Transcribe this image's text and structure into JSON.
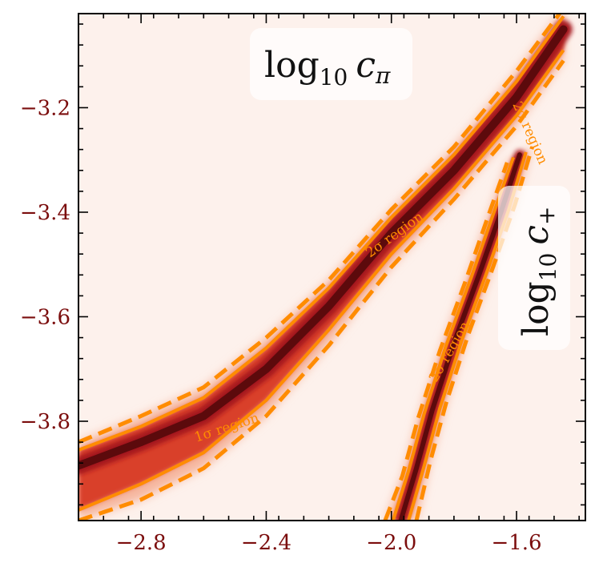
{
  "chart_data": {
    "type": "heatmap",
    "title": "",
    "xlabel": "",
    "ylabel": "",
    "xlim": [
      -3.0,
      -1.38
    ],
    "ylim": [
      -3.99,
      -3.02
    ],
    "grid": false,
    "x_ticks": [
      -2.8,
      -2.4,
      -2.0,
      -1.6
    ],
    "y_ticks": [
      -3.2,
      -3.4,
      -3.6,
      -3.8
    ],
    "x_tick_labels": [
      "−2.8",
      "−2.4",
      "−2.0",
      "−1.6"
    ],
    "y_tick_labels": [
      "−3.2",
      "−3.4",
      "−3.6",
      "−3.8"
    ],
    "colormap": [
      "#fdf1ec",
      "#f6b69e",
      "#d9402a",
      "#a4121a",
      "#5c0a0c"
    ],
    "contour_color": "#ff8c00",
    "series": [
      {
        "name": "log10 c_pi",
        "label_main": "log",
        "label_sub": "10",
        "label_var": "c",
        "label_var_sub": "π",
        "ridge": [
          [
            -3.0,
            -3.885
          ],
          [
            -2.8,
            -3.84
          ],
          [
            -2.6,
            -3.79
          ],
          [
            -2.4,
            -3.7
          ],
          [
            -2.2,
            -3.58
          ],
          [
            -2.0,
            -3.44
          ],
          [
            -1.8,
            -3.32
          ],
          [
            -1.6,
            -3.18
          ],
          [
            -1.45,
            -3.05
          ]
        ],
        "contours": [
          {
            "label": "1σ region",
            "style": "solid",
            "upper": [
              [
                -3.0,
                -3.855
              ],
              [
                -2.8,
                -3.81
              ],
              [
                -2.6,
                -3.755
              ],
              [
                -2.4,
                -3.66
              ],
              [
                -2.2,
                -3.545
              ],
              [
                -2.0,
                -3.41
              ],
              [
                -1.8,
                -3.29
              ],
              [
                -1.6,
                -3.15
              ],
              [
                -1.45,
                -3.025
              ]
            ],
            "lower": [
              [
                -3.0,
                -3.97
              ],
              [
                -2.8,
                -3.92
              ],
              [
                -2.6,
                -3.86
              ],
              [
                -2.4,
                -3.76
              ],
              [
                -2.2,
                -3.625
              ],
              [
                -2.0,
                -3.48
              ],
              [
                -1.8,
                -3.355
              ],
              [
                -1.6,
                -3.215
              ],
              [
                -1.45,
                -3.09
              ]
            ]
          },
          {
            "label": "2σ region",
            "style": "dashed",
            "upper": [
              [
                -3.0,
                -3.84
              ],
              [
                -2.8,
                -3.79
              ],
              [
                -2.6,
                -3.735
              ],
              [
                -2.4,
                -3.64
              ],
              [
                -2.2,
                -3.53
              ],
              [
                -2.0,
                -3.395
              ],
              [
                -1.8,
                -3.275
              ],
              [
                -1.6,
                -3.13
              ],
              [
                -1.45,
                -3.01
              ]
            ],
            "lower": [
              [
                -3.0,
                -3.99
              ],
              [
                -2.8,
                -3.95
              ],
              [
                -2.6,
                -3.89
              ],
              [
                -2.4,
                -3.79
              ],
              [
                -2.2,
                -3.655
              ],
              [
                -2.0,
                -3.505
              ],
              [
                -1.8,
                -3.375
              ],
              [
                -1.6,
                -3.235
              ],
              [
                -1.45,
                -3.11
              ]
            ]
          }
        ]
      },
      {
        "name": "log10 c_+",
        "label_main": "log",
        "label_sub": "10",
        "label_var": "c",
        "label_var_sub": "+",
        "ridge": [
          [
            -1.97,
            -3.99
          ],
          [
            -1.92,
            -3.89
          ],
          [
            -1.87,
            -3.78
          ],
          [
            -1.8,
            -3.65
          ],
          [
            -1.72,
            -3.52
          ],
          [
            -1.65,
            -3.4
          ],
          [
            -1.59,
            -3.29
          ]
        ],
        "contours": [
          {
            "label": "1σ region",
            "style": "solid",
            "upper": [
              [
                -1.945,
                -3.99
              ],
              [
                -1.895,
                -3.885
              ],
              [
                -1.845,
                -3.775
              ],
              [
                -1.775,
                -3.645
              ],
              [
                -1.695,
                -3.515
              ],
              [
                -1.625,
                -3.395
              ],
              [
                -1.57,
                -3.285
              ]
            ],
            "lower": [
              [
                -1.995,
                -3.99
              ],
              [
                -1.945,
                -3.895
              ],
              [
                -1.895,
                -3.785
              ],
              [
                -1.825,
                -3.655
              ],
              [
                -1.745,
                -3.525
              ],
              [
                -1.675,
                -3.405
              ],
              [
                -1.61,
                -3.295
              ]
            ]
          },
          {
            "label": "2σ region",
            "style": "dashed",
            "upper": [
              [
                -1.92,
                -3.99
              ],
              [
                -1.875,
                -3.875
              ],
              [
                -1.825,
                -3.765
              ],
              [
                -1.755,
                -3.635
              ],
              [
                -1.675,
                -3.505
              ],
              [
                -1.605,
                -3.385
              ],
              [
                -1.55,
                -3.275
              ]
            ],
            "lower": [
              [
                -2.02,
                -3.99
              ],
              [
                -1.965,
                -3.905
              ],
              [
                -1.915,
                -3.795
              ],
              [
                -1.845,
                -3.665
              ],
              [
                -1.765,
                -3.535
              ],
              [
                -1.695,
                -3.415
              ],
              [
                -1.63,
                -3.305
              ]
            ]
          }
        ]
      }
    ],
    "annotations": [
      {
        "text": "1σ region",
        "series": 0
      },
      {
        "text": "2σ region",
        "series": 0
      },
      {
        "text": "2σ region",
        "series": 1
      },
      {
        "text": "2σ region",
        "series": 0
      }
    ]
  }
}
